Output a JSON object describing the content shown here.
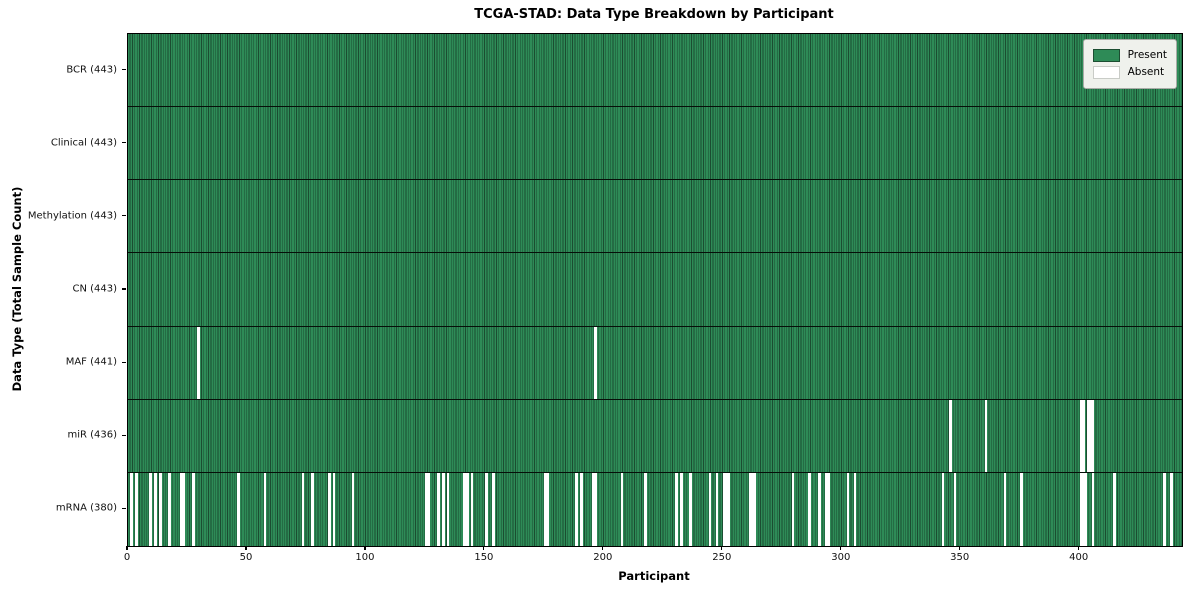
{
  "title": "TCGA-STAD: Data Type Breakdown by Participant",
  "xlabel": "Participant",
  "ylabel": "Data Type (Total Sample Count)",
  "legend": {
    "present_label": "Present",
    "absent_label": "Absent"
  },
  "colors": {
    "present": "#2e8b57",
    "present_cell_edge": "#1b4d31",
    "absent": "#ffffff",
    "row_separator": "#060f09",
    "legend_bg": "#eff1ec",
    "axis": "#000000"
  },
  "chart_data": {
    "type": "heatmap",
    "title": "TCGA-STAD: Data Type Breakdown by Participant",
    "xlabel": "Participant",
    "ylabel": "Data Type (Total Sample Count)",
    "legend": [
      "Present",
      "Absent"
    ],
    "legend_position": "upper right",
    "n_participants": 443,
    "x_ticks": [
      0,
      50,
      100,
      150,
      200,
      250,
      300,
      350,
      400
    ],
    "xlim": [
      0,
      443
    ],
    "cell_states": {
      "present": 1,
      "absent": 0
    },
    "rows": [
      {
        "label": "BCR (443)",
        "present_count": 443,
        "absent_participants": []
      },
      {
        "label": "Clinical (443)",
        "present_count": 443,
        "absent_participants": []
      },
      {
        "label": "Methylation (443)",
        "present_count": 443,
        "absent_participants": []
      },
      {
        "label": "CN (443)",
        "present_count": 443,
        "absent_participants": []
      },
      {
        "label": "MAF (441)",
        "present_count": 441,
        "absent_participants": [
          29,
          196
        ]
      },
      {
        "label": "miR (436)",
        "present_count": 436,
        "absent_participants": [
          345,
          360,
          400,
          401,
          403,
          404,
          405
        ]
      },
      {
        "label": "mRNA (380)",
        "present_count": 380,
        "absent_participants": [
          1,
          3,
          9,
          11,
          13,
          17,
          22,
          23,
          27,
          46,
          57,
          73,
          77,
          84,
          86,
          94,
          125,
          126,
          130,
          132,
          134,
          141,
          142,
          144,
          150,
          153,
          175,
          176,
          188,
          190,
          195,
          196,
          207,
          217,
          230,
          232,
          236,
          244,
          247,
          250,
          251,
          252,
          261,
          262,
          263,
          279,
          286,
          290,
          293,
          294,
          302,
          305,
          342,
          347,
          368,
          375,
          400,
          401,
          402,
          405,
          414,
          435,
          438
        ]
      }
    ]
  }
}
